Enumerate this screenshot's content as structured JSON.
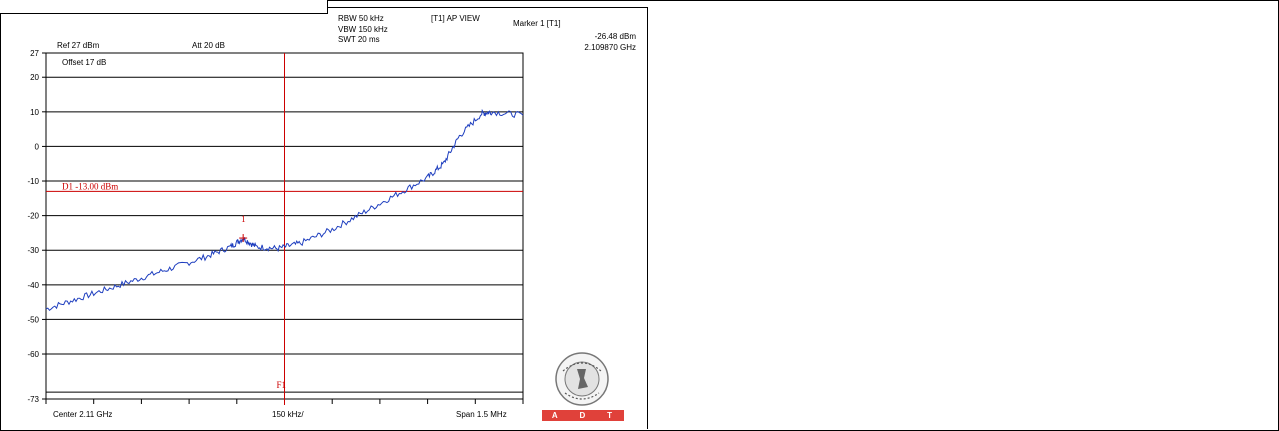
{
  "header": {
    "ref": "Ref 27 dBm",
    "att": "Att  20 dB",
    "rbw": "RBW 50 kHz",
    "vbw": "VBW 150 kHz",
    "swt": "SWT 20 ms",
    "view": "[T1] AP VIEW",
    "marker_title": "Marker 1 [T1]",
    "marker_level": "-26.48 dBm",
    "marker_freq": "2.109870 GHz"
  },
  "offset_label": "Offset 17 dB",
  "footer": {
    "center": "Center 2.11 GHz",
    "per_div": "150 kHz/",
    "span": "Span 1.5 MHz"
  },
  "logo": {
    "org": "BUREAU VERITAS",
    "year": "1828",
    "letters": [
      "A",
      "D",
      "T"
    ],
    "color": "#e0413a"
  },
  "colors": {
    "trace": "#1f3fbf",
    "limit": "#cc0000",
    "grid": "#000000"
  },
  "chart_data": {
    "type": "line",
    "title": "",
    "xlabel": "",
    "ylabel": "",
    "y_ticks": [
      20,
      10,
      0,
      -10,
      -20,
      -30,
      -40,
      -50,
      -60
    ],
    "y_edge_labels": [
      "27",
      "-73"
    ],
    "ylim": [
      -73,
      27
    ],
    "xlim": [
      2.10925,
      2.11075
    ],
    "x_unit": "GHz",
    "grid": true,
    "series": [
      {
        "x": [
          2.10925,
          2.10935,
          2.10945,
          2.10955,
          2.10965,
          2.10975,
          2.10983,
          2.10987,
          2.10991,
          2.10998,
          2.11005,
          2.11015,
          2.11025,
          2.11035,
          2.11045,
          2.1105,
          2.11055,
          2.11062,
          2.11065,
          2.11075
        ],
        "values": [
          -47,
          -44,
          -41,
          -38,
          -35,
          -32,
          -29,
          -26.5,
          -29,
          -29.5,
          -28,
          -24,
          -19,
          -14,
          -9,
          -5,
          3,
          9.5,
          10,
          9
        ]
      }
    ],
    "limit_line": {
      "label": "D1 -13.00 dBm",
      "value": -13
    },
    "marker": {
      "label": "1",
      "x": 2.10987,
      "value": -26.48
    },
    "vertical_line": {
      "label": "F1",
      "x": 2.11
    }
  }
}
